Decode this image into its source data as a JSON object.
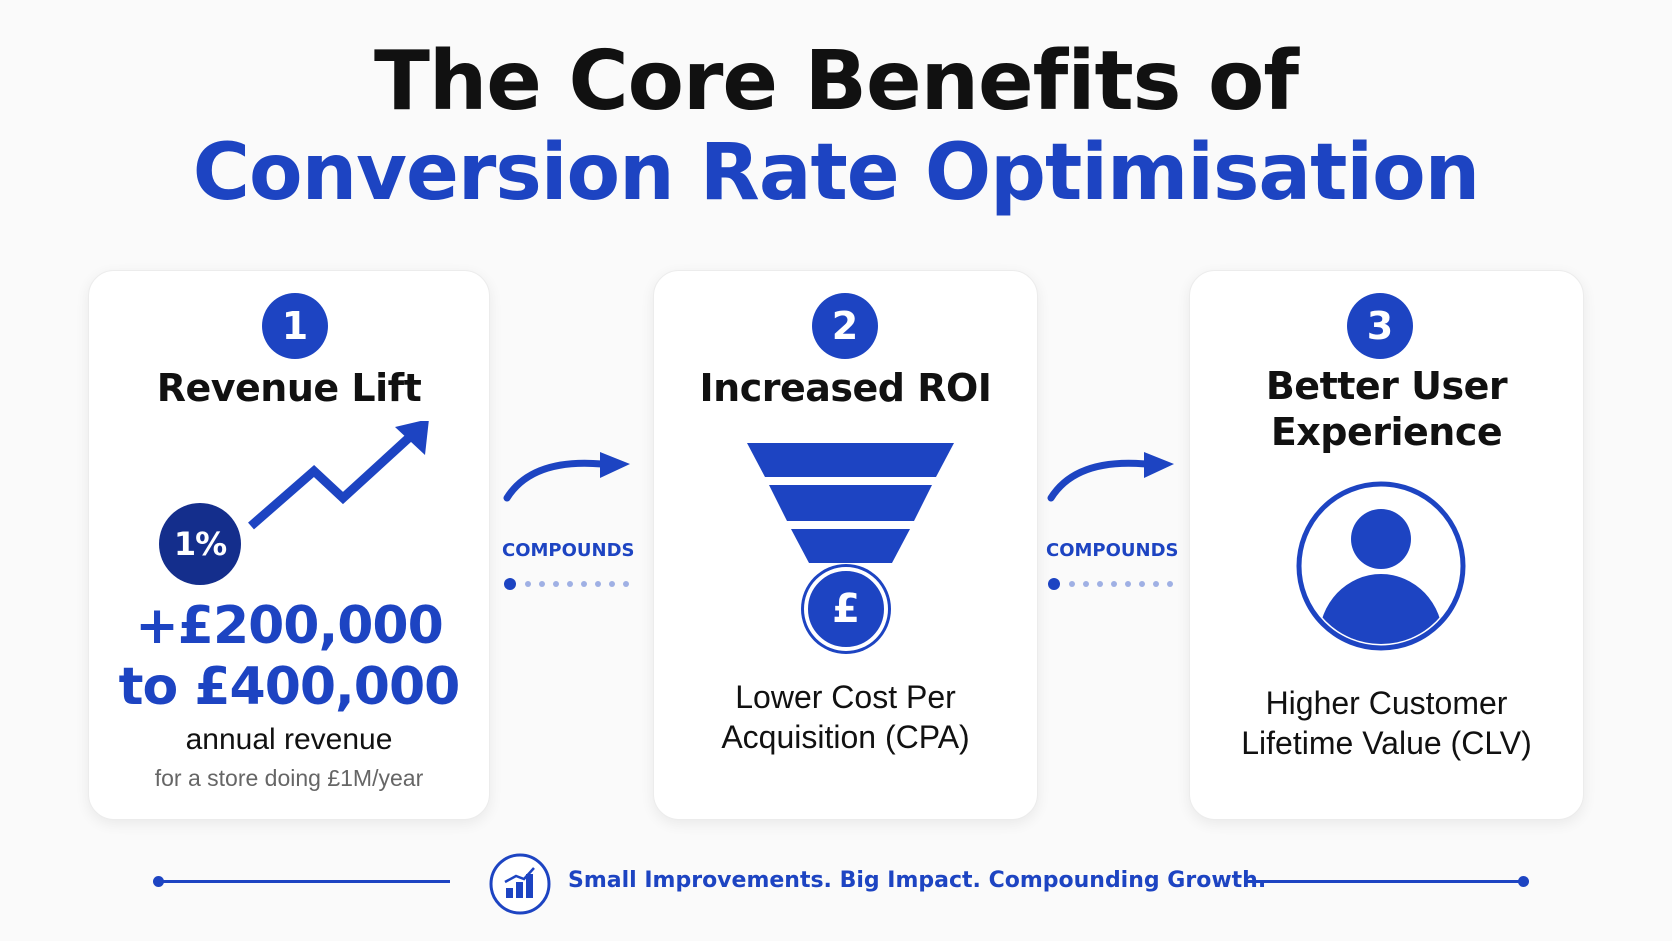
{
  "title": {
    "line1": "The Core Benefits of",
    "line2": "Conversion Rate Optimisation"
  },
  "colors": {
    "accent": "#1d44c2",
    "accent_dark": "#142e8c",
    "text": "#111111",
    "muted": "#666666",
    "background": "#fafafa"
  },
  "cards": [
    {
      "number": "1",
      "title": "Revenue Lift",
      "icon": "upward-trend-arrow-icon",
      "badge": "1%",
      "amount_line1": "+£200,000",
      "amount_line2": "to £400,000",
      "caption": "annual revenue",
      "note": "for a store doing £1M/year"
    },
    {
      "number": "2",
      "title": "Increased ROI",
      "icon": "funnel-icon",
      "coin_symbol": "£",
      "desc_line1": "Lower Cost Per",
      "desc_line2": "Acquisition (CPA)"
    },
    {
      "number": "3",
      "title_line1": "Better User",
      "title_line2": "Experience",
      "icon": "user-avatar-icon",
      "desc_line1": "Higher Customer",
      "desc_line2": "Lifetime Value (CLV)"
    }
  ],
  "connectors": [
    {
      "label": "COMPOUNDS",
      "icon": "curved-arrow-icon"
    },
    {
      "label": "COMPOUNDS",
      "icon": "curved-arrow-icon"
    }
  ],
  "footer": {
    "icon": "bar-chart-icon",
    "text": "Small Improvements. Big Impact. Compounding Growth."
  }
}
